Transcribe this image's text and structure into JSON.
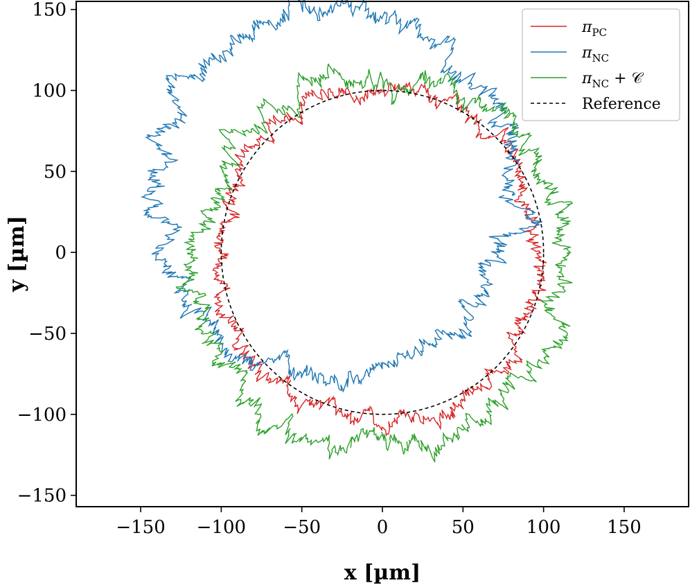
{
  "chart_data": {
    "type": "line",
    "title": "",
    "xlabel": "x [µm]",
    "ylabel": "y [µm]",
    "xlim": [
      -190,
      190
    ],
    "ylim": [
      -157,
      155
    ],
    "xticks": [
      -150,
      -100,
      -50,
      0,
      50,
      100,
      150
    ],
    "yticks": [
      -150,
      -100,
      -50,
      0,
      50,
      100,
      150
    ],
    "xtick_labels": [
      "−150",
      "−100",
      "−50",
      "0",
      "50",
      "100",
      "150"
    ],
    "ytick_labels": [
      "−150",
      "−100",
      "−50",
      "0",
      "50",
      "100",
      "150"
    ],
    "grid": false,
    "legend_position": "top-right",
    "series": [
      {
        "name": "πPC",
        "label_main": "π",
        "label_sub": "PC",
        "color": "#d62728",
        "style": "solid",
        "center": [
          -1,
          0
        ],
        "radius": 101,
        "noise": 6,
        "seed": 11
      },
      {
        "name": "πNC",
        "label_main": "π",
        "label_sub": "NC",
        "color": "#1f77b4",
        "style": "solid",
        "center": [
          -30,
          35
        ],
        "radius": 113,
        "noise": 8,
        "seed": 23
      },
      {
        "name": "πNC + C",
        "label_main": "π",
        "label_sub": "NC",
        "label_suffix": " + 𝒞",
        "color": "#2ca02c",
        "style": "solid",
        "center": [
          0,
          -8
        ],
        "radius": 115,
        "noise": 8,
        "seed": 37
      },
      {
        "name": "Reference",
        "label_main": "Reference",
        "color": "#000000",
        "style": "dashed",
        "center": [
          0,
          0
        ],
        "radius": 100
      }
    ]
  }
}
